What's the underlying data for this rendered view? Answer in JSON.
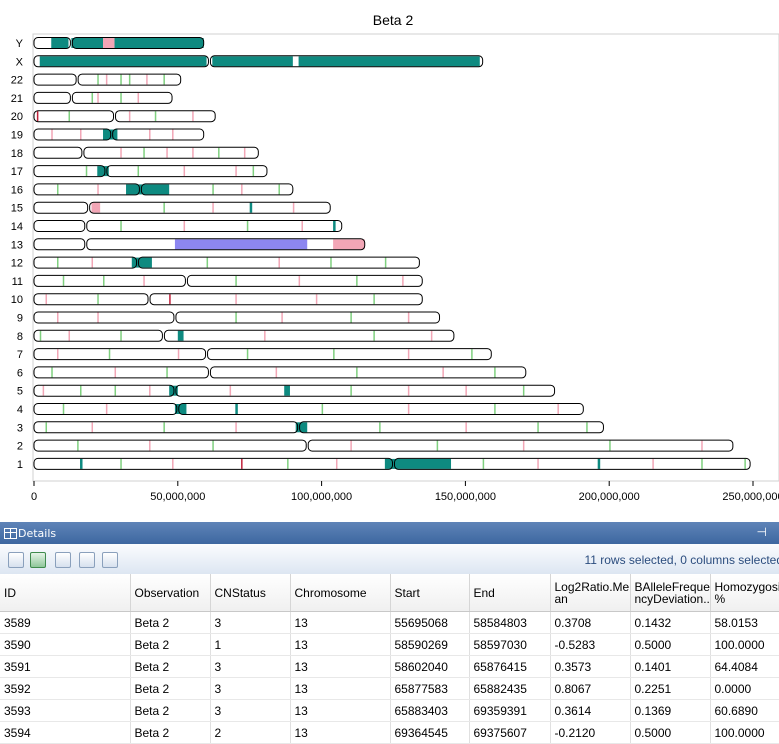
{
  "chart_data": {
    "type": "ideogram",
    "title": "Beta 2",
    "x_ticks": [
      "0",
      "50,000,000",
      "100,000,000",
      "150,000,000",
      "200,000,000",
      "250,000,000"
    ],
    "xlim": [
      0,
      250000000
    ],
    "colors": {
      "gain_large": "#0e8a80",
      "gain_small": "#7fd07f",
      "loss": "#f2a6b6",
      "loh": "#8c86f0",
      "marker_dark": "#c0203a",
      "outline": "#000000"
    },
    "chromosomes": [
      {
        "name": "Y",
        "length": 59000000,
        "cent": 13000000,
        "segments": [
          [
            6000000,
            12000000,
            "gain_large"
          ],
          [
            13000000,
            24000000,
            "gain_large"
          ],
          [
            24000000,
            28000000,
            "loss"
          ],
          [
            28000000,
            59000000,
            "gain_large"
          ]
        ],
        "ticks": []
      },
      {
        "name": "X",
        "length": 156000000,
        "cent": 61000000,
        "segments": [
          [
            2000000,
            60000000,
            "gain_large"
          ],
          [
            62000000,
            90000000,
            "gain_large"
          ],
          [
            92000000,
            155000000,
            "gain_large"
          ]
        ],
        "ticks": []
      },
      {
        "name": "22",
        "length": 51000000,
        "cent": 15000000,
        "segments": [],
        "ticks": [
          [
            22000000,
            "gain_small"
          ],
          [
            25000000,
            "loss"
          ],
          [
            30000000,
            "gain_small"
          ],
          [
            33000000,
            "gain_small"
          ],
          [
            39000000,
            "loss"
          ],
          [
            45000000,
            "gain_small"
          ]
        ]
      },
      {
        "name": "21",
        "length": 48000000,
        "cent": 13000000,
        "segments": [],
        "ticks": [
          [
            20000000,
            "gain_small"
          ],
          [
            22000000,
            "loss"
          ],
          [
            30000000,
            "gain_small"
          ],
          [
            36000000,
            "loss"
          ]
        ]
      },
      {
        "name": "20",
        "length": 63000000,
        "cent": 28000000,
        "segments": [],
        "ticks": [
          [
            1000000,
            "marker_dark"
          ],
          [
            12000000,
            "gain_small"
          ],
          [
            33000000,
            "loss"
          ],
          [
            42000000,
            "gain_small"
          ],
          [
            55000000,
            "loss"
          ]
        ]
      },
      {
        "name": "19",
        "length": 59000000,
        "cent": 27000000,
        "segments": [
          [
            24000000,
            29000000,
            "gain_large"
          ]
        ],
        "ticks": [
          [
            6000000,
            "loss"
          ],
          [
            16000000,
            "loss"
          ],
          [
            40000000,
            "loss"
          ],
          [
            48000000,
            "loss"
          ]
        ]
      },
      {
        "name": "18",
        "length": 78000000,
        "cent": 17000000,
        "segments": [],
        "ticks": [
          [
            30000000,
            "loss"
          ],
          [
            38000000,
            "gain_small"
          ],
          [
            46000000,
            "loss"
          ],
          [
            55000000,
            "loss"
          ],
          [
            64000000,
            "gain_small"
          ],
          [
            73000000,
            "loss"
          ]
        ]
      },
      {
        "name": "17",
        "length": 81000000,
        "cent": 25000000,
        "segments": [
          [
            22000000,
            26000000,
            "gain_large"
          ]
        ],
        "ticks": [
          [
            18000000,
            "gain_small"
          ],
          [
            36000000,
            "gain_small"
          ],
          [
            52000000,
            "loss"
          ],
          [
            70000000,
            "loss"
          ],
          [
            76000000,
            "gain_small"
          ]
        ]
      },
      {
        "name": "16",
        "length": 90000000,
        "cent": 37000000,
        "segments": [
          [
            32000000,
            47000000,
            "gain_large"
          ]
        ],
        "ticks": [
          [
            8000000,
            "gain_small"
          ],
          [
            22000000,
            "loss"
          ],
          [
            62000000,
            "gain_small"
          ],
          [
            72000000,
            "loss"
          ],
          [
            85000000,
            "gain_small"
          ]
        ]
      },
      {
        "name": "15",
        "length": 103000000,
        "cent": 19000000,
        "segments": [
          [
            20000000,
            23000000,
            "loss"
          ]
        ],
        "ticks": [
          [
            45000000,
            "gain_small"
          ],
          [
            62000000,
            "loss"
          ],
          [
            75000000,
            "gain_large"
          ],
          [
            90000000,
            "loss"
          ]
        ]
      },
      {
        "name": "14",
        "length": 107000000,
        "cent": 18000000,
        "segments": [],
        "ticks": [
          [
            30000000,
            "gain_small"
          ],
          [
            52000000,
            "loss"
          ],
          [
            74000000,
            "gain_small"
          ],
          [
            93000000,
            "loss"
          ],
          [
            104000000,
            "gain_large"
          ]
        ]
      },
      {
        "name": "13",
        "length": 115000000,
        "cent": 18000000,
        "segments": [
          [
            49000000,
            95000000,
            "loh"
          ],
          [
            104000000,
            115000000,
            "loss"
          ]
        ],
        "ticks": []
      },
      {
        "name": "12",
        "length": 134000000,
        "cent": 36000000,
        "segments": [
          [
            34000000,
            41000000,
            "gain_large"
          ]
        ],
        "ticks": [
          [
            8000000,
            "gain_small"
          ],
          [
            20000000,
            "loss"
          ],
          [
            60000000,
            "gain_small"
          ],
          [
            85000000,
            "loss"
          ],
          [
            103000000,
            "gain_small"
          ],
          [
            122000000,
            "gain_small"
          ]
        ]
      },
      {
        "name": "11",
        "length": 135000000,
        "cent": 53000000,
        "segments": [],
        "ticks": [
          [
            10000000,
            "gain_small"
          ],
          [
            24000000,
            "gain_small"
          ],
          [
            38000000,
            "loss"
          ],
          [
            70000000,
            "gain_small"
          ],
          [
            92000000,
            "loss"
          ],
          [
            112000000,
            "gain_small"
          ],
          [
            128000000,
            "loss"
          ]
        ]
      },
      {
        "name": "10",
        "length": 135000000,
        "cent": 40000000,
        "segments": [],
        "ticks": [
          [
            4000000,
            "loss"
          ],
          [
            22000000,
            "gain_small"
          ],
          [
            47000000,
            "marker_dark"
          ],
          [
            70000000,
            "loss"
          ],
          [
            98000000,
            "loss"
          ],
          [
            118000000,
            "gain_small"
          ]
        ]
      },
      {
        "name": "9",
        "length": 141000000,
        "cent": 49000000,
        "segments": [],
        "ticks": [
          [
            8000000,
            "loss"
          ],
          [
            22000000,
            "loss"
          ],
          [
            70000000,
            "gain_small"
          ],
          [
            86000000,
            "loss"
          ],
          [
            110000000,
            "gain_small"
          ],
          [
            130000000,
            "loss"
          ]
        ]
      },
      {
        "name": "8",
        "length": 146000000,
        "cent": 45000000,
        "segments": [
          [
            50000000,
            52000000,
            "gain_large"
          ]
        ],
        "ticks": [
          [
            2000000,
            "gain_small"
          ],
          [
            12000000,
            "loss"
          ],
          [
            30000000,
            "gain_small"
          ],
          [
            80000000,
            "loss"
          ],
          [
            118000000,
            "gain_small"
          ],
          [
            138000000,
            "loss"
          ]
        ]
      },
      {
        "name": "7",
        "length": 159000000,
        "cent": 60000000,
        "segments": [],
        "ticks": [
          [
            8000000,
            "loss"
          ],
          [
            26000000,
            "gain_small"
          ],
          [
            50000000,
            "loss"
          ],
          [
            74000000,
            "gain_small"
          ],
          [
            104000000,
            "gain_small"
          ],
          [
            130000000,
            "loss"
          ],
          [
            152000000,
            "gain_small"
          ]
        ]
      },
      {
        "name": "6",
        "length": 171000000,
        "cent": 61000000,
        "segments": [],
        "ticks": [
          [
            6000000,
            "gain_small"
          ],
          [
            28000000,
            "loss"
          ],
          [
            46000000,
            "gain_small"
          ],
          [
            84000000,
            "loss"
          ],
          [
            112000000,
            "gain_small"
          ],
          [
            142000000,
            "loss"
          ],
          [
            160000000,
            "gain_small"
          ]
        ]
      },
      {
        "name": "5",
        "length": 181000000,
        "cent": 49000000,
        "segments": [
          [
            47000000,
            50000000,
            "gain_large"
          ],
          [
            87000000,
            89000000,
            "gain_large"
          ]
        ],
        "ticks": [
          [
            3000000,
            "loss"
          ],
          [
            16000000,
            "gain_small"
          ],
          [
            28000000,
            "gain_small"
          ],
          [
            40000000,
            "loss"
          ],
          [
            68000000,
            "loss"
          ],
          [
            110000000,
            "gain_small"
          ],
          [
            130000000,
            "loss"
          ],
          [
            150000000,
            "loss"
          ],
          [
            170000000,
            "gain_small"
          ]
        ]
      },
      {
        "name": "4",
        "length": 191000000,
        "cent": 50000000,
        "segments": [
          [
            49000000,
            53000000,
            "gain_large"
          ]
        ],
        "ticks": [
          [
            10000000,
            "gain_small"
          ],
          [
            25000000,
            "loss"
          ],
          [
            70000000,
            "gain_large"
          ],
          [
            100000000,
            "gain_small"
          ],
          [
            130000000,
            "loss"
          ],
          [
            160000000,
            "gain_small"
          ],
          [
            182000000,
            "loss"
          ]
        ]
      },
      {
        "name": "3",
        "length": 198000000,
        "cent": 92000000,
        "segments": [
          [
            91000000,
            95000000,
            "gain_large"
          ]
        ],
        "ticks": [
          [
            4000000,
            "gain_small"
          ],
          [
            20000000,
            "loss"
          ],
          [
            45000000,
            "gain_small"
          ],
          [
            70000000,
            "loss"
          ],
          [
            120000000,
            "gain_small"
          ],
          [
            150000000,
            "loss"
          ],
          [
            175000000,
            "gain_small"
          ],
          [
            192000000,
            "gain_small"
          ]
        ]
      },
      {
        "name": "2",
        "length": 243000000,
        "cent": 95000000,
        "segments": [],
        "ticks": [
          [
            15000000,
            "gain_small"
          ],
          [
            40000000,
            "loss"
          ],
          [
            62000000,
            "gain_small"
          ],
          [
            110000000,
            "loss"
          ],
          [
            140000000,
            "gain_small"
          ],
          [
            170000000,
            "loss"
          ],
          [
            200000000,
            "gain_small"
          ],
          [
            232000000,
            "loss"
          ]
        ]
      },
      {
        "name": "1",
        "length": 249000000,
        "cent": 125000000,
        "segments": [
          [
            122000000,
            145000000,
            "gain_large"
          ]
        ],
        "ticks": [
          [
            16000000,
            "gain_large"
          ],
          [
            30000000,
            "gain_small"
          ],
          [
            48000000,
            "loss"
          ],
          [
            72000000,
            "marker_dark"
          ],
          [
            88000000,
            "gain_small"
          ],
          [
            105000000,
            "loss"
          ],
          [
            156000000,
            "gain_small"
          ],
          [
            175000000,
            "loss"
          ],
          [
            196000000,
            "gain_large"
          ],
          [
            215000000,
            "loss"
          ],
          [
            232000000,
            "gain_small"
          ],
          [
            247000000,
            "gain_small"
          ]
        ]
      }
    ]
  },
  "details": {
    "title": "Details",
    "pin_glyph": "ᵖ",
    "selection_info": "11 rows selected, 0 columns selected",
    "toolbar_buttons": [
      "copy-button",
      "export-excel-button",
      "save-button",
      "copy-selection-button",
      "paste-button"
    ],
    "columns": [
      "ID",
      "Observation",
      "CNStatus",
      "Chromosome",
      "Start",
      "End",
      "Log2Ratio.Mean",
      "BAlleleFrequencyDeviation...",
      "Homozygosity %"
    ],
    "column_display": [
      "ID",
      "Observation",
      "CNStatus",
      "Chromosome",
      "Start",
      "End",
      "Log2Ratio.Me an",
      "BAlleleFreque ncyDeviation...",
      "Homozygosit %"
    ],
    "rows": [
      [
        "3589",
        "Beta 2",
        "3",
        "13",
        "55695068",
        "58584803",
        "0.3708",
        "0.1432",
        "58.0153"
      ],
      [
        "3590",
        "Beta 2",
        "1",
        "13",
        "58590269",
        "58597030",
        "-0.5283",
        "0.5000",
        "100.0000"
      ],
      [
        "3591",
        "Beta 2",
        "3",
        "13",
        "58602040",
        "65876415",
        "0.3573",
        "0.1401",
        "64.4084"
      ],
      [
        "3592",
        "Beta 2",
        "3",
        "13",
        "65877583",
        "65882435",
        "0.8067",
        "0.2251",
        "0.0000"
      ],
      [
        "3593",
        "Beta 2",
        "3",
        "13",
        "65883403",
        "69359391",
        "0.3614",
        "0.1369",
        "60.6890"
      ],
      [
        "3594",
        "Beta 2",
        "2",
        "13",
        "69364545",
        "69375607",
        "-0.2120",
        "0.5000",
        "100.0000"
      ]
    ]
  }
}
